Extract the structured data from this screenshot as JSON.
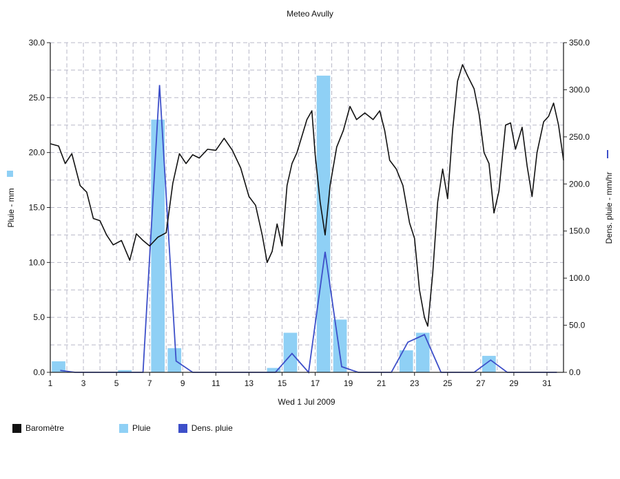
{
  "chart_data": {
    "type": "bar+line",
    "title": "Meteo  Avully",
    "xlabel": "Wed 1 Jul 2009",
    "x_ticks": [
      "1",
      "3",
      "5",
      "7",
      "9",
      "11",
      "13",
      "15",
      "17",
      "19",
      "21",
      "23",
      "25",
      "27",
      "29",
      "31"
    ],
    "x_range": [
      1,
      32
    ],
    "y_left": {
      "label": "Pluie - mm",
      "range": [
        0,
        30
      ],
      "ticks": [
        "0.0",
        "5.0",
        "10.0",
        "15.0",
        "20.0",
        "25.0",
        "30.0"
      ]
    },
    "y_right": {
      "label": "Dens. pluie - mm/hr",
      "range": [
        0,
        350
      ],
      "ticks": [
        "0.0",
        "50.0",
        "100.0",
        "150.0",
        "200.0",
        "250.0",
        "300.0",
        "350.0"
      ]
    },
    "grid": true,
    "legend_position": "bottom-left",
    "colors": {
      "barometre": "#111111",
      "pluie": "#8fd0f5",
      "dens": "#3d4fc9",
      "grid": "#b8b8c8"
    },
    "series": [
      {
        "name": "Pluie",
        "type": "bar",
        "axis": "left",
        "data": [
          {
            "x": 1.5,
            "y": 1.0
          },
          {
            "x": 5.5,
            "y": 0.2
          },
          {
            "x": 7.5,
            "y": 23.0
          },
          {
            "x": 8.5,
            "y": 2.2
          },
          {
            "x": 14.5,
            "y": 0.4
          },
          {
            "x": 15.5,
            "y": 3.6
          },
          {
            "x": 17.5,
            "y": 27.0
          },
          {
            "x": 18.5,
            "y": 4.8
          },
          {
            "x": 22.5,
            "y": 2.0
          },
          {
            "x": 23.5,
            "y": 3.6
          },
          {
            "x": 27.5,
            "y": 1.5
          }
        ]
      },
      {
        "name": "Dens. pluie",
        "type": "line",
        "axis": "right",
        "data": [
          {
            "x": 1.6,
            "y": 2
          },
          {
            "x": 2.5,
            "y": 0
          },
          {
            "x": 6.6,
            "y": 0
          },
          {
            "x": 7.6,
            "y": 305
          },
          {
            "x": 8.6,
            "y": 12
          },
          {
            "x": 9.6,
            "y": 0
          },
          {
            "x": 14.6,
            "y": 0
          },
          {
            "x": 15.6,
            "y": 20
          },
          {
            "x": 16.6,
            "y": 0
          },
          {
            "x": 17.6,
            "y": 128
          },
          {
            "x": 18.6,
            "y": 6
          },
          {
            "x": 19.6,
            "y": 0
          },
          {
            "x": 21.6,
            "y": 0
          },
          {
            "x": 22.6,
            "y": 32
          },
          {
            "x": 23.6,
            "y": 40
          },
          {
            "x": 24.6,
            "y": 0
          },
          {
            "x": 26.6,
            "y": 0
          },
          {
            "x": 27.6,
            "y": 13
          },
          {
            "x": 28.6,
            "y": 0
          },
          {
            "x": 31.6,
            "y": 0
          }
        ]
      },
      {
        "name": "Baromètre",
        "type": "line",
        "axis": "left",
        "data": [
          {
            "x": 1.0,
            "y": 20.8
          },
          {
            "x": 1.5,
            "y": 20.6
          },
          {
            "x": 1.9,
            "y": 19.0
          },
          {
            "x": 2.3,
            "y": 19.9
          },
          {
            "x": 2.8,
            "y": 17.0
          },
          {
            "x": 3.2,
            "y": 16.4
          },
          {
            "x": 3.6,
            "y": 14.0
          },
          {
            "x": 4.0,
            "y": 13.8
          },
          {
            "x": 4.4,
            "y": 12.5
          },
          {
            "x": 4.8,
            "y": 11.6
          },
          {
            "x": 5.3,
            "y": 12.0
          },
          {
            "x": 5.8,
            "y": 10.2
          },
          {
            "x": 6.2,
            "y": 12.6
          },
          {
            "x": 6.6,
            "y": 12.0
          },
          {
            "x": 7.0,
            "y": 11.5
          },
          {
            "x": 7.5,
            "y": 12.3
          },
          {
            "x": 8.0,
            "y": 12.7
          },
          {
            "x": 8.4,
            "y": 17.2
          },
          {
            "x": 8.8,
            "y": 19.9
          },
          {
            "x": 9.2,
            "y": 19.0
          },
          {
            "x": 9.6,
            "y": 19.8
          },
          {
            "x": 10.0,
            "y": 19.5
          },
          {
            "x": 10.5,
            "y": 20.3
          },
          {
            "x": 11.0,
            "y": 20.2
          },
          {
            "x": 11.5,
            "y": 21.3
          },
          {
            "x": 12.0,
            "y": 20.2
          },
          {
            "x": 12.5,
            "y": 18.6
          },
          {
            "x": 13.0,
            "y": 16.0
          },
          {
            "x": 13.4,
            "y": 15.2
          },
          {
            "x": 13.8,
            "y": 12.5
          },
          {
            "x": 14.1,
            "y": 10.0
          },
          {
            "x": 14.4,
            "y": 11.0
          },
          {
            "x": 14.7,
            "y": 13.5
          },
          {
            "x": 15.0,
            "y": 11.5
          },
          {
            "x": 15.3,
            "y": 17.0
          },
          {
            "x": 15.6,
            "y": 19.0
          },
          {
            "x": 15.9,
            "y": 20.0
          },
          {
            "x": 16.2,
            "y": 21.5
          },
          {
            "x": 16.5,
            "y": 23.0
          },
          {
            "x": 16.8,
            "y": 23.8
          },
          {
            "x": 17.0,
            "y": 19.8
          },
          {
            "x": 17.3,
            "y": 15.5
          },
          {
            "x": 17.6,
            "y": 12.5
          },
          {
            "x": 17.9,
            "y": 17.0
          },
          {
            "x": 18.3,
            "y": 20.5
          },
          {
            "x": 18.7,
            "y": 22.0
          },
          {
            "x": 19.1,
            "y": 24.2
          },
          {
            "x": 19.5,
            "y": 23.0
          },
          {
            "x": 20.0,
            "y": 23.6
          },
          {
            "x": 20.5,
            "y": 23.0
          },
          {
            "x": 20.9,
            "y": 23.8
          },
          {
            "x": 21.2,
            "y": 22.0
          },
          {
            "x": 21.5,
            "y": 19.3
          },
          {
            "x": 21.9,
            "y": 18.5
          },
          {
            "x": 22.3,
            "y": 17.0
          },
          {
            "x": 22.7,
            "y": 13.6
          },
          {
            "x": 23.0,
            "y": 12.2
          },
          {
            "x": 23.3,
            "y": 7.5
          },
          {
            "x": 23.6,
            "y": 5.0
          },
          {
            "x": 23.8,
            "y": 4.2
          },
          {
            "x": 24.1,
            "y": 9.0
          },
          {
            "x": 24.4,
            "y": 15.5
          },
          {
            "x": 24.7,
            "y": 18.5
          },
          {
            "x": 25.0,
            "y": 15.8
          },
          {
            "x": 25.3,
            "y": 22.0
          },
          {
            "x": 25.6,
            "y": 26.5
          },
          {
            "x": 25.9,
            "y": 28.0
          },
          {
            "x": 26.2,
            "y": 27.0
          },
          {
            "x": 26.6,
            "y": 25.8
          },
          {
            "x": 26.9,
            "y": 23.5
          },
          {
            "x": 27.2,
            "y": 20.0
          },
          {
            "x": 27.5,
            "y": 19.0
          },
          {
            "x": 27.8,
            "y": 14.5
          },
          {
            "x": 28.1,
            "y": 16.5
          },
          {
            "x": 28.5,
            "y": 22.5
          },
          {
            "x": 28.8,
            "y": 22.7
          },
          {
            "x": 29.1,
            "y": 20.3
          },
          {
            "x": 29.5,
            "y": 22.3
          },
          {
            "x": 29.8,
            "y": 18.8
          },
          {
            "x": 30.1,
            "y": 16.0
          },
          {
            "x": 30.4,
            "y": 20.0
          },
          {
            "x": 30.8,
            "y": 22.8
          },
          {
            "x": 31.1,
            "y": 23.3
          },
          {
            "x": 31.4,
            "y": 24.5
          },
          {
            "x": 31.7,
            "y": 22.5
          },
          {
            "x": 32.0,
            "y": 19.3
          }
        ]
      }
    ],
    "legend": [
      {
        "name": "Baromètre",
        "color": "#111111"
      },
      {
        "name": "Pluie",
        "color": "#8fd0f5"
      },
      {
        "name": "Dens. pluie",
        "color": "#3d4fc9"
      }
    ]
  }
}
